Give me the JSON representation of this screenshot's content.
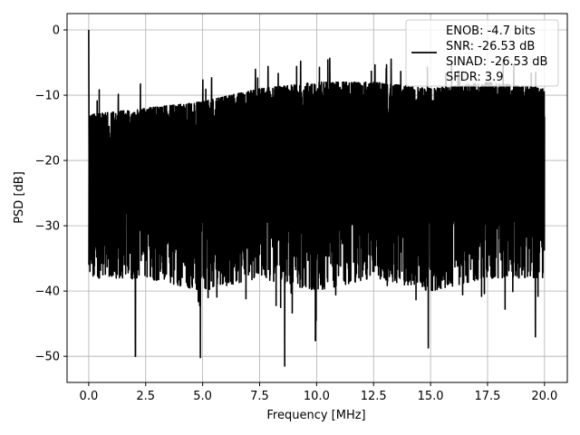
{
  "chart_data": {
    "type": "line",
    "title": "",
    "xlabel": "Frequency [MHz]",
    "ylabel": "PSD [dB]",
    "xlim": [
      -0.95,
      21.0
    ],
    "ylim": [
      -54.0,
      2.5
    ],
    "xticks": [
      0.0,
      2.5,
      5.0,
      7.5,
      10.0,
      12.5,
      15.0,
      17.5,
      20.0
    ],
    "xtick_labels": [
      "0.0",
      "2.5",
      "5.0",
      "7.5",
      "10.0",
      "12.5",
      "15.0",
      "17.5",
      "20.0"
    ],
    "yticks": [
      0,
      -10,
      -20,
      -30,
      -40,
      -50
    ],
    "ytick_labels": [
      "0",
      "−10",
      "−20",
      "−30",
      "−40",
      "−50"
    ],
    "grid": true,
    "legend_position": "top-right",
    "series": [
      {
        "color": "#000000",
        "x_range": [
          0.0,
          20.0
        ],
        "peak": {
          "x": 0.0,
          "y": 0.0
        },
        "upper_envelope": [
          [
            0.0,
            -13
          ],
          [
            2.5,
            -12
          ],
          [
            5.0,
            -11
          ],
          [
            7.5,
            -9
          ],
          [
            10.0,
            -8
          ],
          [
            12.5,
            -8
          ],
          [
            15.0,
            -9
          ],
          [
            17.5,
            -8
          ],
          [
            20.0,
            -9
          ]
        ],
        "lower_envelope": [
          [
            0.0,
            -38
          ],
          [
            2.5,
            -38
          ],
          [
            5.0,
            -40
          ],
          [
            7.5,
            -38
          ],
          [
            10.0,
            -40
          ],
          [
            12.5,
            -38
          ],
          [
            15.0,
            -40
          ],
          [
            17.5,
            -38
          ],
          [
            20.0,
            -38
          ]
        ],
        "notable_minima": [
          {
            "x": 2.05,
            "y": -50.0
          },
          {
            "x": 4.9,
            "y": -50.2
          },
          {
            "x": 8.6,
            "y": -51.5
          },
          {
            "x": 9.95,
            "y": -47.6
          },
          {
            "x": 14.9,
            "y": -48.7
          },
          {
            "x": 19.6,
            "y": -47.0
          }
        ]
      }
    ],
    "legend_lines": [
      "ENOB: -4.7 bits",
      "SNR: -26.53 dB",
      "SINAD: -26.53 dB",
      "SFDR: 3.9"
    ]
  }
}
